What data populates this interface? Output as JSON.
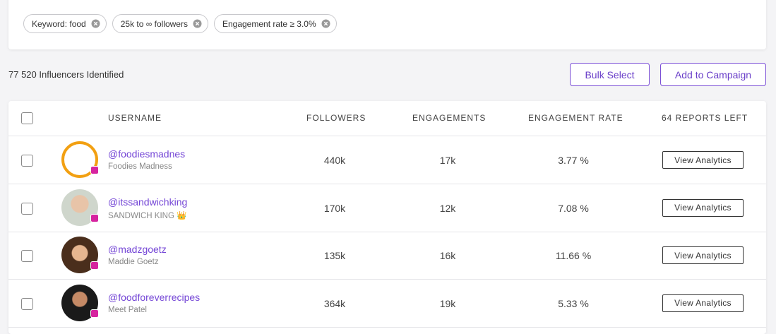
{
  "filters": [
    "Keyword: food",
    "25k to ∞ followers",
    "Engagement rate ≥ 3.0%"
  ],
  "summary": "77 520 Influencers Identified",
  "buttons": [
    "Bulk Select",
    "Add to Campaign"
  ],
  "table": {
    "columns": [
      "USERNAME",
      "FOLLOWERS",
      "ENGAGEMENTS",
      "ENGAGEMENT RATE",
      "64 REPORTS LEFT"
    ],
    "rows": [
      {
        "handle": "@foodiesmadnes",
        "name": "Foodies Madness",
        "followers": "440k",
        "engagements": "17k",
        "rate": "3.77 %",
        "action": "View Analytics"
      },
      {
        "handle": "@itssandwichking",
        "name": "SANDWICH KING 👑",
        "followers": "170k",
        "engagements": "12k",
        "rate": "7.08 %",
        "action": "View Analytics"
      },
      {
        "handle": "@madzgoetz",
        "name": "Maddie Goetz",
        "followers": "135k",
        "engagements": "16k",
        "rate": "11.66 %",
        "action": "View Analytics"
      },
      {
        "handle": "@foodforeverrecipes",
        "name": "Meet Patel",
        "followers": "364k",
        "engagements": "19k",
        "rate": "5.33 %",
        "action": "View Analytics"
      }
    ]
  }
}
